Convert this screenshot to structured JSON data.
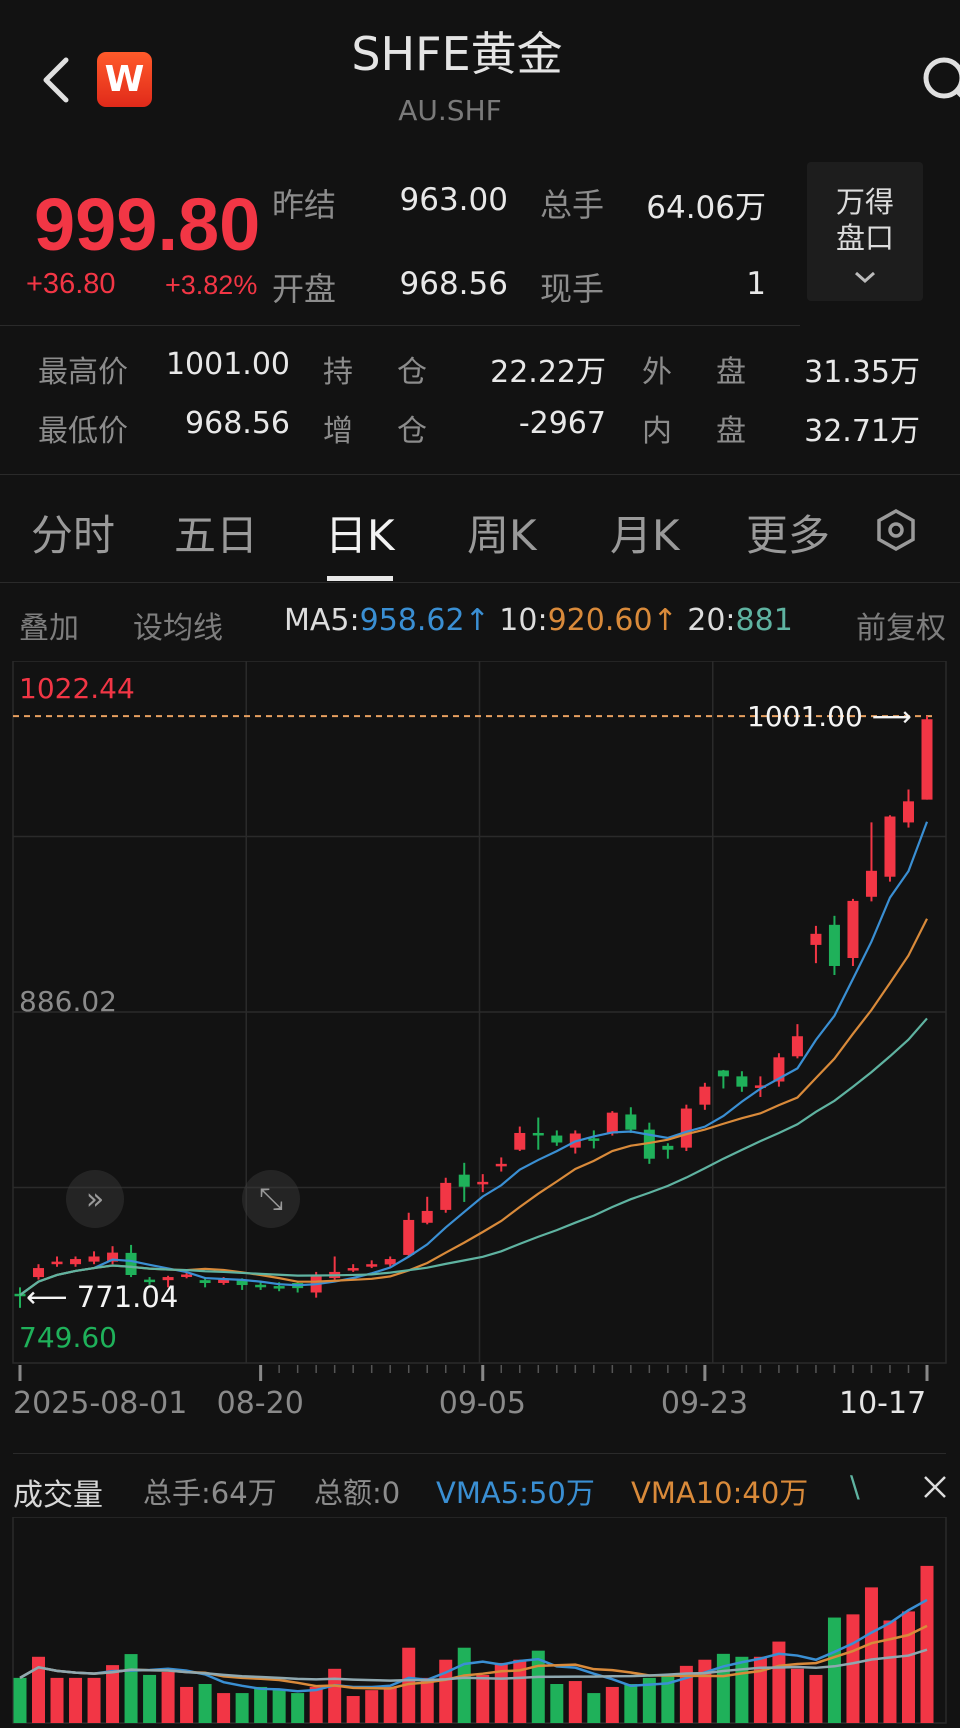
{
  "header": {
    "title": "SHFE黄金",
    "code": "AU.SHF",
    "logo_letter": "W",
    "back_icon": "chevron-left-icon",
    "search_icon": "search-icon"
  },
  "quote": {
    "price": "999.80",
    "change": "+36.80",
    "change_pct": "+3.82%",
    "rows": [
      {
        "l1": "昨结",
        "v1": "963.00",
        "l2": "总手",
        "v2": "64.06万"
      },
      {
        "l1": "开盘",
        "v1": "968.56",
        "l2": "现手",
        "v2": "1"
      }
    ],
    "depth_button": {
      "line1": "万得",
      "line2": "盘口",
      "icon": "chevron-down-icon"
    }
  },
  "stats": [
    {
      "l1": "最高价",
      "v1": "1001.00",
      "l2a": "持",
      "l2b": "仓",
      "v2": "22.22万",
      "l3a": "外",
      "l3b": "盘",
      "v3": "31.35万"
    },
    {
      "l1": "最低价",
      "v1": "968.56",
      "l2a": "增",
      "l2b": "仓",
      "v2": "-2967",
      "l3a": "内",
      "l3b": "盘",
      "v3": "32.71万"
    }
  ],
  "tabs": [
    {
      "label": "分时",
      "selected": false
    },
    {
      "label": "五日",
      "selected": false
    },
    {
      "label": "日K",
      "selected": true
    },
    {
      "label": "周K",
      "selected": false
    },
    {
      "label": "月K",
      "selected": false
    },
    {
      "label": "更多",
      "selected": false
    }
  ],
  "tab_settings_icon": "hexagon-settings-icon",
  "ma_bar": {
    "overlay": "叠加",
    "set_ma": "设均线",
    "ma5_label": "MA5:",
    "ma5_value": "958.62",
    "ma5_arrow": "↑",
    "ma10_label": "10:",
    "ma10_value": "920.60",
    "ma10_arrow": "↑",
    "ma20_label": "20:",
    "ma20_value": "881",
    "adjust": "前复权"
  },
  "colors": {
    "up": "#f23645",
    "down": "#1fb15a",
    "ma5": "#3a8fd3",
    "ma10": "#d98a3a",
    "ma20": "#5fb3a1",
    "background": "#121212"
  },
  "chart_data": [
    {
      "type": "candlestick",
      "ylim": [
        749.6,
        1022.44
      ],
      "axis_labels": {
        "top": "1022.44",
        "mid": "886.02",
        "bottom": "749.60"
      },
      "high_marker": "1001.00",
      "low_marker": "771.04",
      "x_tick_labels": [
        {
          "index": 0,
          "label": "2025-08-01"
        },
        {
          "index": 13,
          "label": "08-20"
        },
        {
          "index": 25,
          "label": "09-05"
        },
        {
          "index": 37,
          "label": "09-23"
        },
        {
          "index": 49,
          "label": "10-17"
        }
      ],
      "grid": true,
      "ma_periods": [
        5,
        10,
        20
      ],
      "ohlc": [
        [
          776.5,
          779,
          771.04,
          776
        ],
        [
          783,
          788,
          782,
          786.5
        ],
        [
          788,
          791,
          787,
          789
        ],
        [
          788,
          791,
          787,
          790
        ],
        [
          789,
          793,
          788,
          791
        ],
        [
          789,
          795,
          788,
          792.5
        ],
        [
          792.4,
          795.5,
          783,
          783.8
        ],
        [
          782,
          783,
          780,
          781.5
        ],
        [
          781.8,
          783.5,
          779,
          783
        ],
        [
          783.8,
          785,
          782.5,
          784
        ],
        [
          781.8,
          783,
          779,
          780.7
        ],
        [
          780.7,
          783,
          780,
          782
        ],
        [
          781.8,
          782.5,
          778,
          779.9
        ],
        [
          780,
          781,
          778,
          779.5
        ],
        [
          779.5,
          781,
          777.5,
          779
        ],
        [
          780.7,
          781.5,
          777,
          778.7
        ],
        [
          777,
          785,
          775,
          784
        ],
        [
          782.6,
          791,
          782,
          785
        ],
        [
          786,
          788,
          785,
          786.5
        ],
        [
          787.5,
          789.5,
          786.5,
          788
        ],
        [
          787.9,
          791,
          787,
          790
        ],
        [
          791.6,
          808,
          791,
          805.2
        ],
        [
          804.1,
          814.2,
          803.5,
          808.7
        ],
        [
          809.1,
          821.6,
          808,
          819.6
        ],
        [
          822.8,
          827.4,
          812.2,
          818.1
        ],
        [
          819.5,
          823,
          816,
          820
        ],
        [
          826.5,
          829.5,
          824,
          827
        ],
        [
          832.5,
          841.5,
          832,
          839
        ],
        [
          839,
          845,
          832.5,
          838.5
        ],
        [
          838,
          840,
          834,
          835.3
        ],
        [
          833.3,
          840,
          831,
          838.8
        ],
        [
          836.9,
          840,
          833,
          836.6
        ],
        [
          838.8,
          847.5,
          838,
          846.9
        ],
        [
          846.2,
          849,
          839,
          840.3
        ],
        [
          840.3,
          843,
          827,
          829
        ],
        [
          834,
          835,
          829,
          832.5
        ],
        [
          833.3,
          850,
          832,
          848.5
        ],
        [
          850,
          858.5,
          848,
          857
        ],
        [
          863.3,
          863.5,
          856.3,
          861
        ],
        [
          861,
          863,
          855,
          857
        ],
        [
          856.5,
          861,
          853,
          857.5
        ],
        [
          859,
          870,
          857,
          868.4
        ],
        [
          868.8,
          881.3,
          868,
          876.6
        ],
        [
          912.1,
          919.5,
          905,
          916.4
        ],
        [
          919.9,
          923.4,
          900.4,
          903.9
        ],
        [
          907,
          930,
          903.9,
          929.2
        ],
        [
          930.8,
          959.7,
          929,
          940.9
        ],
        [
          938.6,
          962.5,
          936.7,
          962
        ],
        [
          959.7,
          972.5,
          957.7,
          967.9
        ],
        [
          968.56,
          1001,
          968.56,
          999.8
        ]
      ]
    },
    {
      "type": "bar",
      "unit": "万",
      "ylim": [
        0,
        84
      ],
      "ma_periods": [
        5,
        10,
        20
      ],
      "values": [
        18.4,
        27.0,
        18.4,
        18.4,
        18.4,
        23.6,
        28.1,
        19.6,
        20.8,
        14.7,
        15.9,
        12.2,
        12.2,
        14.7,
        13.5,
        12.2,
        14.7,
        22.1,
        11.0,
        13.4,
        14.7,
        30.7,
        18.4,
        25.8,
        30.7,
        19.6,
        24.5,
        25.8,
        29.5,
        15.9,
        17.1,
        12.2,
        14.7,
        15.9,
        18.4,
        19.6,
        23.3,
        25.8,
        28.2,
        27.0,
        27.0,
        33.2,
        22.1,
        19.6,
        43.0,
        44.3,
        55.3,
        41.8,
        45.5,
        64.06
      ]
    }
  ],
  "volume_bar": {
    "title": "成交量",
    "total_hands": "总手:64万",
    "total_amount": "总额:0",
    "vma5": "VMA5:50万",
    "vma10": "VMA10:40万",
    "vma20_cut": "\\",
    "close_icon": "close-icon"
  },
  "overlay_buttons": {
    "collapse_icon": "double-chevron-right-icon",
    "expand_icon": "expand-arrows-icon"
  }
}
